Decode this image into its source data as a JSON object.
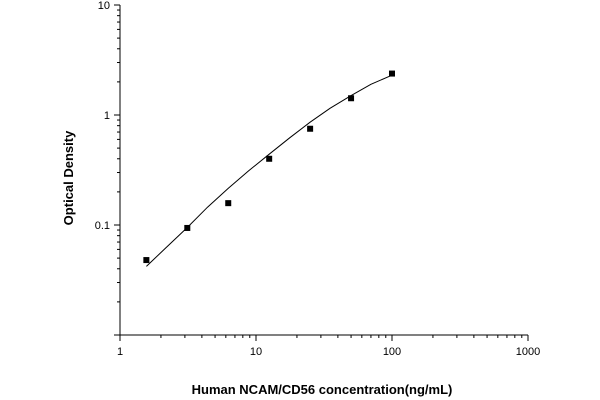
{
  "chart_data": {
    "type": "scatter",
    "xlabel": "Human NCAM/CD56 concentration(ng/mL)",
    "ylabel": "Optical Density",
    "x_scale": "log",
    "y_scale": "log",
    "xlim": [
      1,
      1000
    ],
    "ylim": [
      0.01,
      10
    ],
    "x_ticks": [
      "1",
      "10",
      "100",
      "1000"
    ],
    "y_ticks": [
      "0.1",
      "1",
      "10"
    ],
    "grid": false,
    "legend": "none",
    "points": [
      {
        "x": 1.5625,
        "y": 0.048
      },
      {
        "x": 3.125,
        "y": 0.094
      },
      {
        "x": 6.25,
        "y": 0.158
      },
      {
        "x": 12.5,
        "y": 0.4
      },
      {
        "x": 25,
        "y": 0.75
      },
      {
        "x": 50,
        "y": 1.42
      },
      {
        "x": 100,
        "y": 2.38
      }
    ],
    "fit_curve": {
      "x": [
        1.5625,
        2.2,
        3.125,
        4.4,
        6.25,
        8.8,
        12.5,
        17.7,
        25,
        35,
        50,
        70,
        100
      ],
      "y": [
        0.042,
        0.063,
        0.095,
        0.145,
        0.215,
        0.31,
        0.44,
        0.62,
        0.86,
        1.15,
        1.5,
        1.9,
        2.3
      ]
    },
    "marker_color": "#000000",
    "line_color": "#000000"
  }
}
